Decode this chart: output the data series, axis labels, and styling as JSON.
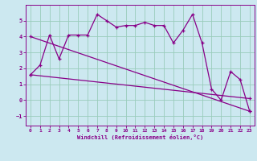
{
  "xlabel": "Windchill (Refroidissement éolien,°C)",
  "bg_color": "#cce8f0",
  "line_color": "#880088",
  "grid_color": "#99ccbb",
  "xlim": [
    -0.5,
    23.5
  ],
  "ylim": [
    -1.6,
    6.0
  ],
  "yticks": [
    -1,
    0,
    1,
    2,
    3,
    4,
    5
  ],
  "xticks": [
    0,
    1,
    2,
    3,
    4,
    5,
    6,
    7,
    8,
    9,
    10,
    11,
    12,
    13,
    14,
    15,
    16,
    17,
    18,
    19,
    20,
    21,
    22,
    23
  ],
  "series1_x": [
    0,
    1,
    2,
    3,
    4,
    5,
    6,
    7,
    8,
    9,
    10,
    11,
    12,
    13,
    14,
    15,
    16,
    17,
    18,
    19,
    20,
    21,
    22,
    23
  ],
  "series1_y": [
    1.6,
    2.2,
    4.1,
    2.6,
    4.1,
    4.1,
    4.1,
    5.4,
    5.0,
    4.6,
    4.7,
    4.7,
    4.9,
    4.7,
    4.7,
    3.6,
    4.4,
    5.4,
    3.6,
    0.7,
    0.0,
    1.8,
    1.3,
    -0.7
  ],
  "series2_x": [
    0,
    23
  ],
  "series2_y": [
    4.0,
    -0.7
  ],
  "series3_x": [
    0,
    23
  ],
  "series3_y": [
    1.6,
    0.1
  ]
}
